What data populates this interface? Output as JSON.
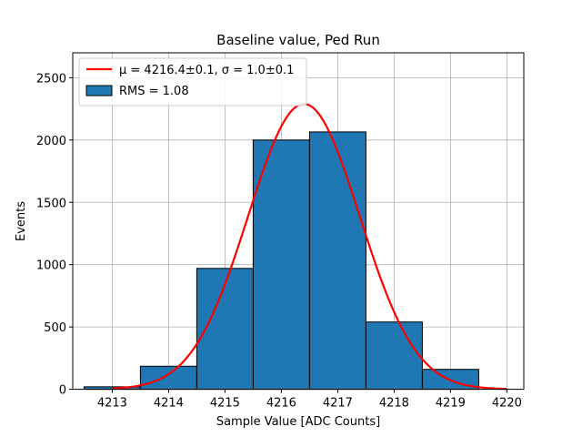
{
  "chart_data": {
    "type": "bar",
    "title": "Baseline value, Ped Run",
    "xlabel": "Sample Value [ADC Counts]",
    "ylabel": "Events",
    "xlim": [
      4212.3,
      4220.3
    ],
    "ylim": [
      0,
      2700
    ],
    "xticks": [
      4213,
      4214,
      4215,
      4216,
      4217,
      4218,
      4219,
      4220
    ],
    "yticks": [
      0,
      500,
      1000,
      1500,
      2000,
      2500
    ],
    "grid": true,
    "legend_position": "top-left",
    "histogram": {
      "name": "RMS = 1.08",
      "color": "#1f77b4",
      "edgecolor": "#000000",
      "bins": [
        {
          "left": 4212.5,
          "right": 4213.5,
          "value": 20
        },
        {
          "left": 4213.5,
          "right": 4214.5,
          "value": 185
        },
        {
          "left": 4214.5,
          "right": 4215.5,
          "value": 970
        },
        {
          "left": 4215.5,
          "right": 4216.5,
          "value": 2000
        },
        {
          "left": 4216.5,
          "right": 4217.5,
          "value": 2065
        },
        {
          "left": 4217.5,
          "right": 4218.5,
          "value": 540
        },
        {
          "left": 4218.5,
          "right": 4219.5,
          "value": 160
        }
      ]
    },
    "fit": {
      "name": "μ = 4216.4±0.1, σ = 1.0±0.1",
      "color": "#ff0000",
      "mu": 4216.4,
      "sigma": 0.99,
      "amplitude": 2290,
      "x_range": [
        4213,
        4220
      ]
    }
  }
}
